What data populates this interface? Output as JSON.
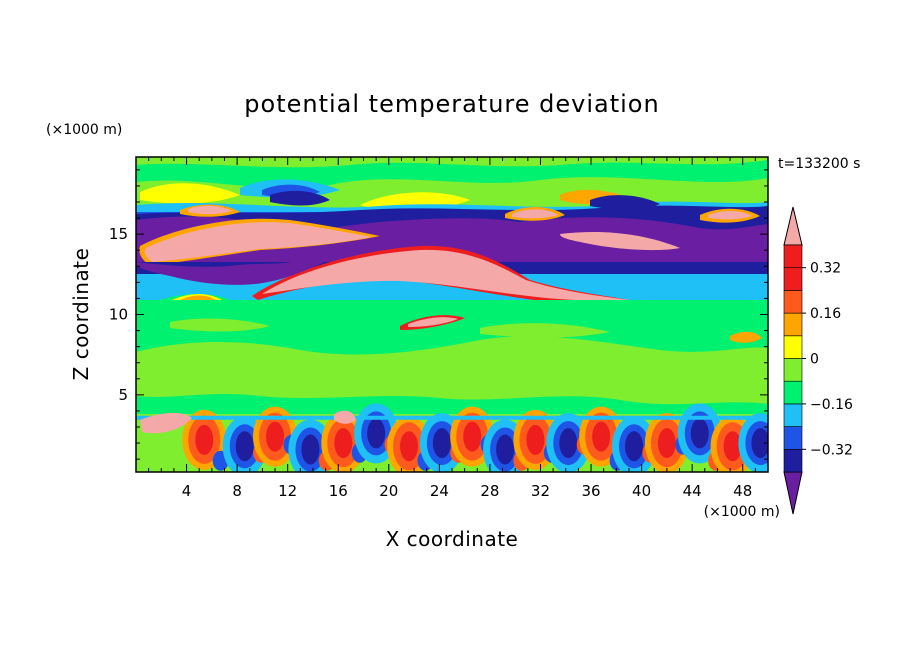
{
  "chart_data": {
    "type": "heatmap",
    "title": "potential temperature deviation",
    "xlabel": "X coordinate",
    "ylabel": "Z coordinate",
    "x_unit": "(×1000 m)",
    "y_unit": "(×1000 m)",
    "time_label": "t=133200 s",
    "xlim": [
      0,
      50
    ],
    "ylim": [
      0.2,
      19.8
    ],
    "x_ticks": [
      4,
      8,
      12,
      16,
      20,
      24,
      28,
      32,
      36,
      40,
      44,
      48
    ],
    "y_ticks": [
      5,
      10,
      15
    ],
    "colorbar": {
      "levels": [
        -0.4,
        -0.32,
        -0.24,
        -0.16,
        -0.08,
        0,
        0.08,
        0.16,
        0.24,
        0.32,
        0.4
      ],
      "tick_values": [
        0.32,
        0.16,
        0,
        -0.16,
        -0.32
      ],
      "tick_labels": [
        "0.32",
        "0.16",
        "0",
        "−0.16",
        "−0.32"
      ],
      "colors": [
        "#6a1fa2",
        "#1e1e9e",
        "#1f55e6",
        "#1fc0f5",
        "#00f070",
        "#7eee2e",
        "#ffff00",
        "#ffa500",
        "#ff5a1e",
        "#ee1e1e",
        "#f5a8a8"
      ]
    },
    "layers": [
      {
        "z_range": [
          17.5,
          19.8
        ],
        "dominant": "0 to 0.08",
        "note": "green with yellow/orange patches"
      },
      {
        "z_range": [
          15.2,
          16.5
        ],
        "dominant": "< -0.4",
        "note": "purple band with blue patches"
      },
      {
        "z_range": [
          12.5,
          15.8
        ],
        "dominant": "> 0.4",
        "note": "pink lens, x 1-40"
      },
      {
        "z_range": [
          12.4,
          14.3
        ],
        "dominant": "< -0.4",
        "note": "purple band"
      },
      {
        "z_range": [
          10.6,
          12.3
        ],
        "dominant": "-0.16 to -0.08",
        "note": "cyan band"
      },
      {
        "z_range": [
          4.0,
          10.5
        ],
        "dominant": "-0.08 to 0.08",
        "note": "green / light green"
      },
      {
        "z_range": [
          0.2,
          3.6
        ],
        "dominant": "mixed",
        "note": "alternating red and blue convective cells"
      }
    ]
  }
}
